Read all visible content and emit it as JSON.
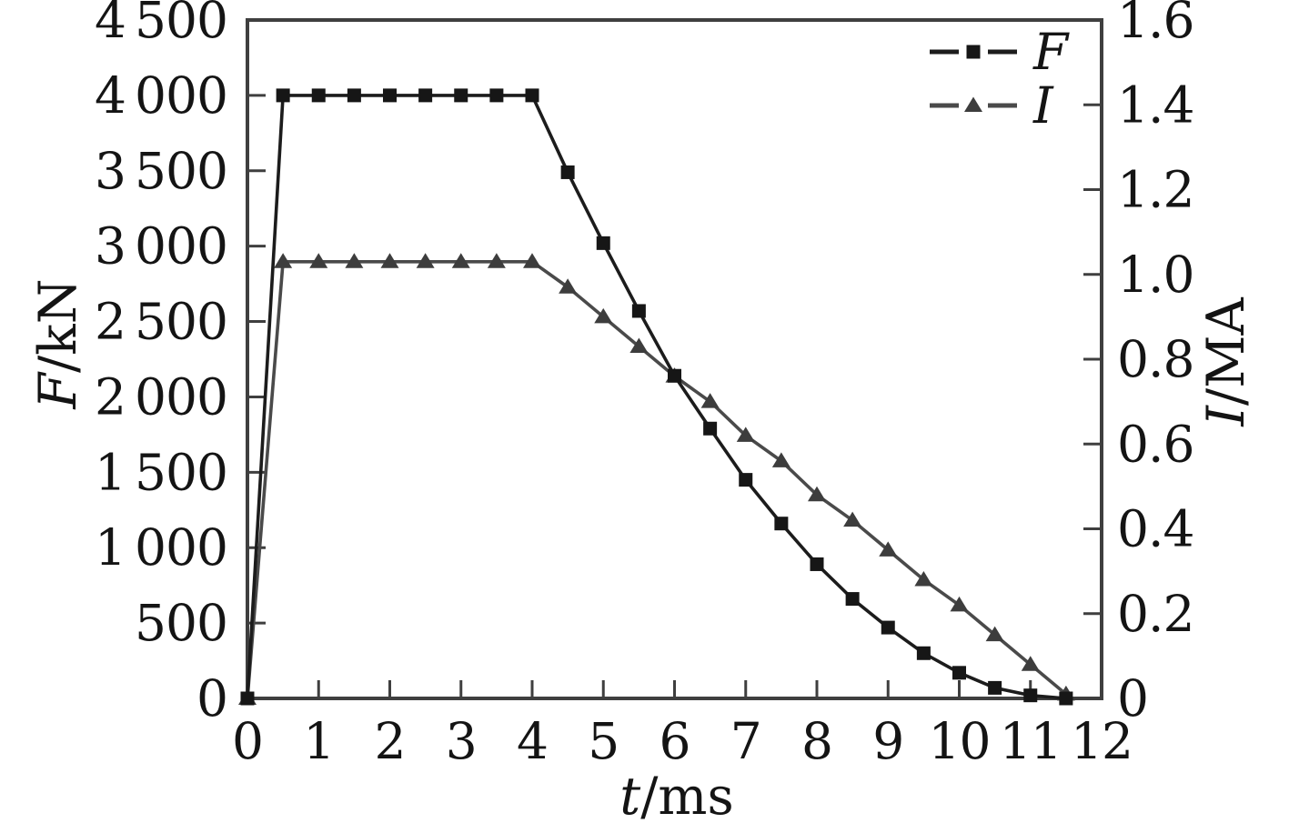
{
  "figure": {
    "background": "#ffffff",
    "frame_color": "#3f3f3f",
    "text_color": "#141414"
  },
  "chart_data": {
    "type": "line",
    "title": "",
    "grid": false,
    "legend_position": "top-right",
    "x": {
      "title_italic": "t",
      "title_rest": "/ms",
      "min": 0,
      "max": 12,
      "tick_labels": [
        "0",
        "1",
        "2",
        "3",
        "4",
        "5",
        "6",
        "7",
        "8",
        "9",
        "10",
        "11",
        "12"
      ]
    },
    "y_left": {
      "title_italic": "F",
      "title_rest": "/kN",
      "min": 0,
      "max": 4500,
      "tick_labels": [
        "0",
        "500",
        "1 000",
        "1 500",
        "2 000",
        "2 500",
        "3 000",
        "3 500",
        "4 000",
        "4 500"
      ]
    },
    "y_right": {
      "title_italic": "I",
      "title_rest": "/MA",
      "min": 0,
      "max": 1.6,
      "tick_labels": [
        "0",
        "0.2",
        "0.4",
        "0.6",
        "0.8",
        "1.0",
        "1.2",
        "1.4",
        "1.6"
      ]
    },
    "series": [
      {
        "name": "F",
        "axis": "left",
        "marker": "square",
        "line_color": "#1c1c1c",
        "marker_color": "#161616",
        "x": [
          0,
          0.5,
          1,
          1.5,
          2,
          2.5,
          3,
          3.5,
          4,
          4.5,
          5,
          5.5,
          6,
          6.5,
          7,
          7.5,
          8,
          8.5,
          9,
          9.5,
          10,
          10.5,
          11,
          11.5
        ],
        "values": [
          0,
          4000,
          4000,
          4000,
          4000,
          4000,
          4000,
          4000,
          4000,
          3490,
          3020,
          2570,
          2140,
          1790,
          1450,
          1160,
          890,
          660,
          470,
          300,
          170,
          70,
          20,
          0
        ]
      },
      {
        "name": "I",
        "axis": "right",
        "marker": "triangle",
        "line_color": "#4a4a4a",
        "marker_color": "#3d3d3d",
        "x": [
          0,
          0.5,
          1,
          1.5,
          2,
          2.5,
          3,
          3.5,
          4,
          4.5,
          5,
          5.5,
          6,
          6.5,
          7,
          7.5,
          8,
          8.5,
          9,
          9.5,
          10,
          10.5,
          11,
          11.5
        ],
        "values": [
          0,
          1.03,
          1.03,
          1.03,
          1.03,
          1.03,
          1.03,
          1.03,
          1.03,
          0.97,
          0.9,
          0.83,
          0.76,
          0.7,
          0.62,
          0.56,
          0.48,
          0.42,
          0.35,
          0.28,
          0.22,
          0.15,
          0.08,
          0.01
        ]
      }
    ],
    "legend": {
      "entries": [
        {
          "label": "F",
          "series": 0
        },
        {
          "label": "I",
          "series": 1
        }
      ]
    }
  }
}
